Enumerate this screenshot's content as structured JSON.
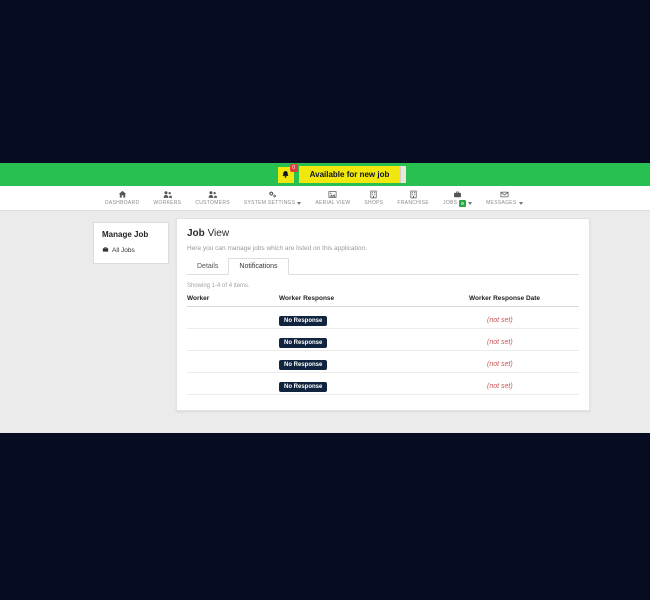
{
  "banner": {
    "bell_badge_count": "0",
    "button_label": "Available for new job",
    "colors": {
      "banner_bg": "#28c151",
      "button_bg": "#f2e70c",
      "bell_badge_bg": "#e03c3c",
      "button_text": "#0a1228"
    }
  },
  "navbar": {
    "items": [
      {
        "label": "DASHBOARD",
        "icon": "home-icon"
      },
      {
        "label": "WORKERS",
        "icon": "users-icon"
      },
      {
        "label": "CUSTOMERS",
        "icon": "users-icon"
      },
      {
        "label": "SYSTEM SETTINGS",
        "icon": "gears-icon",
        "caret": true
      },
      {
        "label": "AERIAL VIEW",
        "icon": "image-icon"
      },
      {
        "label": "SHOPS",
        "icon": "building-icon"
      },
      {
        "label": "FRANCHISE",
        "icon": "building-icon"
      },
      {
        "label": "JOBS",
        "icon": "briefcase-icon",
        "badge": "0",
        "caret": true
      },
      {
        "label": "MESSAGES",
        "icon": "envelope-icon",
        "caret": true
      }
    ],
    "badge_color": "#28a745"
  },
  "sidebar": {
    "title": "Manage Job",
    "items": [
      {
        "label": "All Jobs",
        "icon": "briefcase-icon"
      }
    ]
  },
  "main": {
    "title_bold": "Job",
    "title_rest": "View",
    "subtitle": "Here you can manage jobs which are listed on this application.",
    "tabs": [
      {
        "label": "Details",
        "active": false
      },
      {
        "label": "Notifications",
        "active": true
      }
    ],
    "summary": "Showing 1-4 of 4 items.",
    "table": {
      "headers": [
        "Worker",
        "Worker Response",
        "Worker Response Date"
      ],
      "rows": [
        {
          "worker": "",
          "response": "No Response",
          "response_date": "(not set)"
        },
        {
          "worker": "",
          "response": "No Response",
          "response_date": "(not set)"
        },
        {
          "worker": "",
          "response": "No Response",
          "response_date": "(not set)"
        },
        {
          "worker": "",
          "response": "No Response",
          "response_date": "(not set)"
        }
      ],
      "colors": {
        "worker_bar": "#2bc24f",
        "response_badge_bg": "#10233f",
        "not_set_text": "#c55"
      }
    }
  },
  "page_colors": {
    "frame_bg": "#060d23",
    "content_bg": "#ebebeb",
    "navbar_bg": "#ffffff"
  }
}
